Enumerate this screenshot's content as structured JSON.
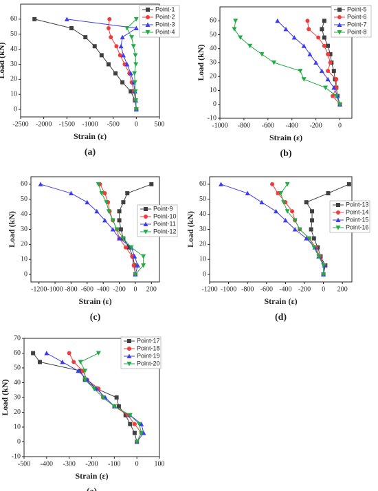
{
  "chart_data": [
    {
      "type": "line",
      "label": "(a)",
      "xlabel": "Strain (ε)",
      "ylabel": "Load (kN)",
      "xlim": [
        -2500,
        500
      ],
      "ylim": [
        -5,
        70
      ],
      "xticks": [
        -2500,
        -2000,
        -1500,
        -1000,
        -500,
        0,
        500
      ],
      "yticks": [
        0,
        10,
        20,
        30,
        40,
        50,
        60
      ],
      "legend": "upper right",
      "series": [
        {
          "name": "Point-1",
          "color": "#404040",
          "marker": "square",
          "x": [
            0,
            -30,
            -120,
            -300,
            -450,
            -600,
            -750,
            -900,
            -1100,
            -1400,
            -2200
          ],
          "y": [
            0,
            6,
            12,
            18,
            24,
            30,
            36,
            42,
            48,
            54,
            60
          ]
        },
        {
          "name": "Point-2",
          "color": "#f03c3c",
          "marker": "circle",
          "x": [
            0,
            -20,
            -50,
            -100,
            -150,
            -250,
            -350,
            -430,
            -550,
            -600,
            -580
          ],
          "y": [
            0,
            6,
            12,
            18,
            24,
            30,
            36,
            42,
            48,
            54,
            60
          ]
        },
        {
          "name": "Point-3",
          "color": "#3c3cf0",
          "marker": "triangle-up",
          "x": [
            0,
            -10,
            -30,
            -60,
            -120,
            -200,
            -280,
            -330,
            -300,
            0,
            -1500
          ],
          "y": [
            0,
            6,
            12,
            18,
            24,
            30,
            36,
            42,
            48,
            54,
            60
          ]
        },
        {
          "name": "Point-4",
          "color": "#22aa44",
          "marker": "triangle-down",
          "x": [
            0,
            -10,
            -20,
            -30,
            -40,
            -10,
            -20,
            -60,
            -100,
            -200,
            0
          ],
          "y": [
            0,
            6,
            12,
            18,
            24,
            30,
            36,
            42,
            48,
            54,
            60
          ]
        }
      ]
    },
    {
      "type": "line",
      "label": "(b)",
      "xlabel": "Strain (ε)",
      "ylabel": "Load (kN)",
      "xlim": [
        -1000,
        100
      ],
      "ylim": [
        -10,
        70
      ],
      "xticks": [
        -1000,
        -800,
        -600,
        -400,
        -200,
        0
      ],
      "yticks": [
        -10,
        0,
        10,
        20,
        30,
        40,
        50,
        60
      ],
      "legend": "upper right",
      "series": [
        {
          "name": "Point-5",
          "color": "#404040",
          "marker": "square",
          "x": [
            0,
            -20,
            -30,
            -40,
            -50,
            -70,
            -80,
            -100,
            -130,
            -150,
            -130
          ],
          "y": [
            0,
            6,
            12,
            18,
            24,
            30,
            36,
            42,
            48,
            54,
            60
          ]
        },
        {
          "name": "Point-6",
          "color": "#f03c3c",
          "marker": "circle",
          "x": [
            0,
            -60,
            -30,
            -30,
            -100,
            -80,
            -100,
            -130,
            -180,
            -260,
            -270
          ],
          "y": [
            0,
            6,
            12,
            18,
            24,
            30,
            36,
            42,
            48,
            54,
            60
          ]
        },
        {
          "name": "Point-7",
          "color": "#3c3cf0",
          "marker": "triangle-up",
          "x": [
            0,
            -20,
            -50,
            -100,
            -150,
            -200,
            -250,
            -300,
            -380,
            -450,
            -520
          ],
          "y": [
            0,
            6,
            12,
            18,
            24,
            30,
            36,
            42,
            48,
            54,
            60
          ]
        },
        {
          "name": "Point-8",
          "color": "#22aa44",
          "marker": "triangle-down",
          "x": [
            0,
            -30,
            -120,
            -300,
            -330,
            -550,
            -650,
            -750,
            -830,
            -880,
            -870
          ],
          "y": [
            0,
            6,
            12,
            18,
            24,
            30,
            36,
            42,
            48,
            54,
            60
          ]
        }
      ]
    },
    {
      "type": "line",
      "label": "(c)",
      "xlabel": "Strain (ε)",
      "ylabel": "Load (kN)",
      "xlim": [
        -1300,
        300
      ],
      "ylim": [
        -5,
        65
      ],
      "xticks": [
        -1200,
        -1000,
        -800,
        -600,
        -400,
        -200,
        0,
        200
      ],
      "yticks": [
        0,
        10,
        20,
        30,
        40,
        50,
        60
      ],
      "legend": "right",
      "series": [
        {
          "name": "Point-9",
          "color": "#404040",
          "marker": "square",
          "x": [
            0,
            -10,
            -30,
            -80,
            -150,
            -180,
            -200,
            -200,
            -150,
            -100,
            200
          ],
          "y": [
            0,
            6,
            12,
            18,
            24,
            30,
            36,
            42,
            48,
            54,
            60
          ]
        },
        {
          "name": "Point-10",
          "color": "#f03c3c",
          "marker": "circle",
          "x": [
            0,
            -20,
            -40,
            -120,
            -200,
            -230,
            -280,
            -320,
            -340,
            -380,
            -440
          ],
          "y": [
            0,
            6,
            12,
            18,
            24,
            30,
            36,
            42,
            48,
            54,
            60
          ]
        },
        {
          "name": "Point-11",
          "color": "#3c3cf0",
          "marker": "triangle-up",
          "x": [
            0,
            30,
            -10,
            -50,
            -200,
            -280,
            -380,
            -480,
            -600,
            -800,
            -1180
          ],
          "y": [
            0,
            6,
            12,
            18,
            24,
            30,
            36,
            42,
            48,
            54,
            60
          ]
        },
        {
          "name": "Point-12",
          "color": "#22aa44",
          "marker": "triangle-down",
          "x": [
            0,
            100,
            100,
            -50,
            -150,
            -230,
            -280,
            -330,
            -360,
            -420,
            -460
          ],
          "y": [
            0,
            6,
            12,
            18,
            24,
            30,
            36,
            42,
            48,
            54,
            60
          ]
        }
      ]
    },
    {
      "type": "line",
      "label": "(d)",
      "xlabel": "Strain (ε)",
      "ylabel": "Load (kN)",
      "xlim": [
        -1200,
        300
      ],
      "ylim": [
        -5,
        65
      ],
      "xticks": [
        -1200,
        -1000,
        -800,
        -600,
        -400,
        -200,
        0,
        200
      ],
      "yticks": [
        0,
        10,
        20,
        30,
        40,
        50,
        60
      ],
      "legend": "right",
      "series": [
        {
          "name": "Point-13",
          "color": "#404040",
          "marker": "square",
          "x": [
            0,
            20,
            -30,
            -60,
            -100,
            -130,
            -120,
            -120,
            -180,
            50,
            270
          ],
          "y": [
            0,
            6,
            12,
            18,
            24,
            30,
            36,
            42,
            48,
            54,
            60
          ]
        },
        {
          "name": "Point-14",
          "color": "#f03c3c",
          "marker": "circle",
          "x": [
            0,
            10,
            -40,
            -80,
            -150,
            -250,
            -300,
            -330,
            -400,
            -480,
            -540
          ],
          "y": [
            0,
            6,
            12,
            18,
            24,
            30,
            36,
            42,
            48,
            54,
            60
          ]
        },
        {
          "name": "Point-15",
          "color": "#3c3cf0",
          "marker": "triangle-up",
          "x": [
            0,
            10,
            -50,
            -90,
            -180,
            -300,
            -400,
            -500,
            -650,
            -800,
            -1080
          ],
          "y": [
            0,
            6,
            12,
            18,
            24,
            30,
            36,
            42,
            48,
            54,
            60
          ]
        },
        {
          "name": "Point-16",
          "color": "#22aa44",
          "marker": "triangle-down",
          "x": [
            0,
            0,
            -50,
            -100,
            -150,
            -250,
            -300,
            -380,
            -420,
            -450,
            -380
          ],
          "y": [
            0,
            6,
            12,
            18,
            24,
            30,
            36,
            42,
            48,
            54,
            60
          ]
        }
      ]
    },
    {
      "type": "line",
      "label": "(e)",
      "xlabel": "Strain (ε)",
      "ylabel": "Load (kN)",
      "xlim": [
        -500,
        100
      ],
      "ylim": [
        -10,
        70
      ],
      "xticks": [
        -500,
        -400,
        -300,
        -200,
        -100,
        0,
        100
      ],
      "yticks": [
        -10,
        0,
        10,
        20,
        30,
        40,
        50,
        60,
        70
      ],
      "legend": "upper right",
      "series": [
        {
          "name": "Point-17",
          "color": "#404040",
          "marker": "square",
          "x": [
            0,
            -10,
            -30,
            -50,
            -80,
            -90,
            -180,
            -230,
            -250,
            -430,
            -460
          ],
          "y": [
            0,
            6,
            12,
            18,
            24,
            30,
            36,
            42,
            48,
            54,
            60
          ]
        },
        {
          "name": "Point-18",
          "color": "#f03c3c",
          "marker": "circle",
          "x": [
            0,
            20,
            -10,
            -40,
            -100,
            -150,
            -170,
            -220,
            -240,
            -280,
            -300
          ],
          "y": [
            0,
            6,
            12,
            18,
            24,
            30,
            36,
            42,
            48,
            54,
            60
          ]
        },
        {
          "name": "Point-19",
          "color": "#3c3cf0",
          "marker": "triangle-up",
          "x": [
            0,
            30,
            20,
            -30,
            -100,
            -140,
            -180,
            -220,
            -260,
            -330,
            -400
          ],
          "y": [
            0,
            6,
            12,
            18,
            24,
            30,
            36,
            42,
            48,
            54,
            60
          ]
        },
        {
          "name": "Point-20",
          "color": "#22aa44",
          "marker": "triangle-down",
          "x": [
            0,
            20,
            10,
            -30,
            -100,
            -150,
            -190,
            -230,
            -230,
            -250,
            -170
          ],
          "y": [
            0,
            6,
            12,
            18,
            24,
            30,
            36,
            42,
            48,
            54,
            60
          ]
        }
      ]
    }
  ]
}
